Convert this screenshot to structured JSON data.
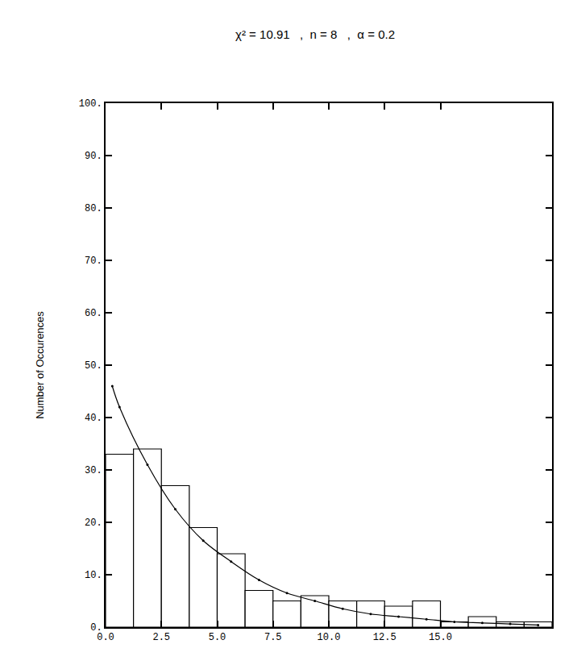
{
  "chart_data": {
    "type": "histogram",
    "title": "χ² = 10.91   ,  n = 8   ,  α = 0.2",
    "y_label": "Number of Occurences",
    "bins": [
      0,
      1.25,
      2.5,
      3.75,
      5,
      6.25,
      7.5,
      8.75,
      10,
      11.25,
      12.5,
      13.75,
      15,
      16.25,
      17.5,
      18.75,
      20
    ],
    "values": [
      33,
      34,
      27,
      19,
      14,
      7,
      5,
      6,
      5,
      5,
      4,
      5,
      1,
      2,
      1,
      1
    ],
    "color": "#ffffff",
    "series": [
      {
        "type": "line",
        "color": "#000000",
        "marker": "dot",
        "x": [
          0.3,
          0.625,
          1.875,
          3.125,
          4.375,
          5.625,
          6.875,
          8.125,
          9.375,
          10.625,
          11.875,
          13.125,
          14.375,
          15.625,
          16.875,
          18.125,
          19.375
        ],
        "values": [
          46,
          42,
          31,
          22.5,
          16.5,
          12.5,
          9,
          6.5,
          5,
          3.5,
          2.5,
          2,
          1.5,
          1,
          0.8,
          0.6,
          0.4
        ]
      }
    ],
    "xlim": [
      0,
      20
    ],
    "xticks": [
      {
        "value": 0,
        "label": "0.0"
      },
      {
        "value": 2.5,
        "label": "2.5"
      },
      {
        "value": 5,
        "label": "5.0"
      },
      {
        "value": 7.5,
        "label": "7.5"
      },
      {
        "value": 10,
        "label": "10.0"
      },
      {
        "value": 12.5,
        "label": "12.5"
      },
      {
        "value": 15,
        "label": "15.0"
      }
    ],
    "ylim": [
      0,
      100
    ],
    "yticks": [
      {
        "value": 0,
        "label": "0."
      },
      {
        "value": 10,
        "label": "10."
      },
      {
        "value": 20,
        "label": "20."
      },
      {
        "value": 30,
        "label": "30."
      },
      {
        "value": 40,
        "label": "40."
      },
      {
        "value": 50,
        "label": "50."
      },
      {
        "value": 60,
        "label": "60."
      },
      {
        "value": 70,
        "label": "70."
      },
      {
        "value": 80,
        "label": "80."
      },
      {
        "value": 90,
        "label": "90."
      },
      {
        "value": 100,
        "label": "100."
      }
    ],
    "grid": false
  }
}
